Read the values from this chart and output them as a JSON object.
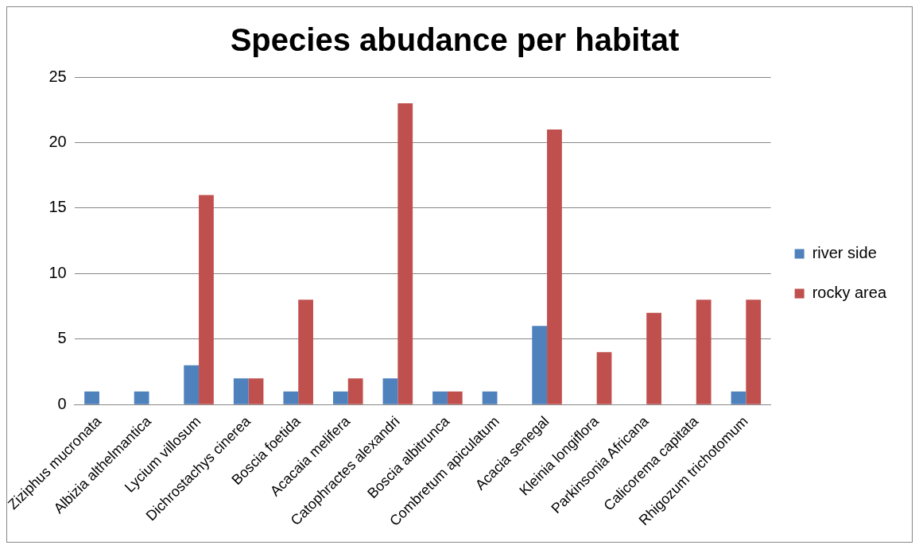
{
  "chart_data": {
    "type": "bar",
    "title": "Species abudance per habitat",
    "categories": [
      "Ziziphus mucronata",
      "Albizia althelmantica",
      "Lycium villosum",
      "Dichrostachys cinerea",
      "Boscia foetida",
      "Acacaia melifera",
      "Catophractes alexandri",
      "Boscia albitrunca",
      "Combretum apiculatum",
      "Acacia senegal",
      "Kleinia longiflora",
      "Parkinsonia Africana",
      "Calicorema capitata",
      "Rhigozum trichotomum"
    ],
    "series": [
      {
        "name": "river side",
        "color": "#4f81bd",
        "values": [
          1,
          1,
          3,
          2,
          1,
          1,
          2,
          1,
          1,
          6,
          0,
          0,
          0,
          1
        ]
      },
      {
        "name": "rocky area",
        "color": "#c0504d",
        "values": [
          0,
          0,
          16,
          2,
          8,
          2,
          23,
          1,
          0,
          21,
          4,
          7,
          8,
          8
        ]
      }
    ],
    "ylim": [
      0,
      25
    ],
    "yticks": [
      0,
      5,
      10,
      15,
      20,
      25
    ],
    "grid": "y",
    "legend": "right"
  }
}
